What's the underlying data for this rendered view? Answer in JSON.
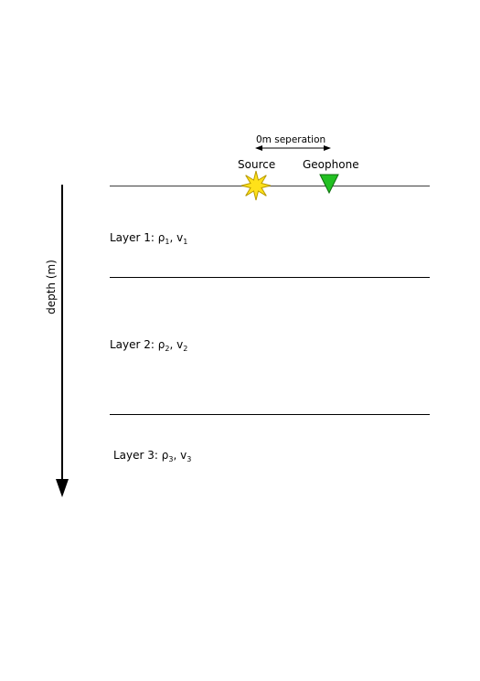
{
  "separation_label": "0m seperation",
  "source_label": "Source",
  "geophone_label": "Geophone",
  "depth_axis_label": "depth (m)",
  "layers": [
    {
      "name": "Layer 1:",
      "rho": "ρ",
      "rho_sub": "1",
      "v": "v",
      "v_sub": "1"
    },
    {
      "name": "Layer 2:",
      "rho": "ρ",
      "rho_sub": "2",
      "v": "v",
      "v_sub": "2"
    },
    {
      "name": "Layer 3:",
      "rho": "ρ",
      "rho_sub": "3",
      "v": "v",
      "v_sub": "3"
    }
  ],
  "colors": {
    "source_fill": "#ffe119",
    "source_stroke": "#b89a00",
    "geophone_fill": "#22c022",
    "geophone_stroke": "#0d6e0d",
    "lines": "#000000"
  },
  "icons": {
    "source": "star-burst-icon",
    "geophone": "triangle-down-icon"
  }
}
